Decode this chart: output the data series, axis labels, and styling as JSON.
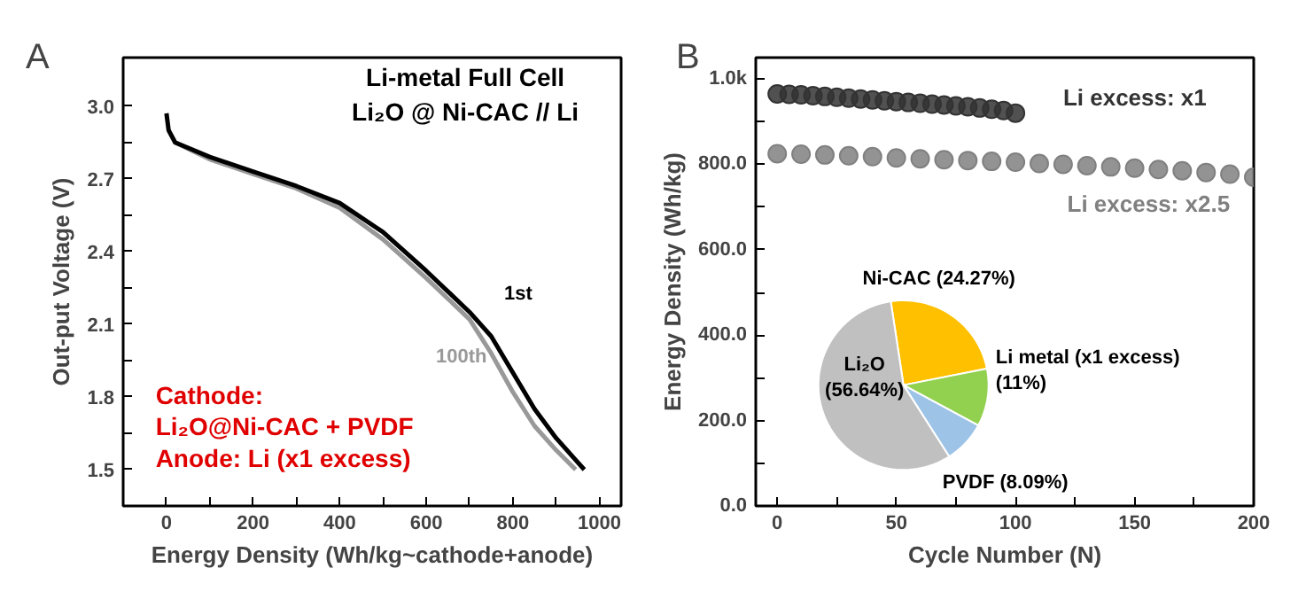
{
  "chart_data": [
    {
      "type": "line",
      "title": "A",
      "xlabel": "Energy Density (Wh/kg~cathode+anode)",
      "ylabel": "Out-put Voltage (V)",
      "xlim": [
        -100,
        1050
      ],
      "ylim": [
        1.35,
        3.2
      ],
      "xticks": [
        0,
        {
          "value": 100,
          "label": null
        },
        200,
        {
          "value": 300,
          "label": null
        },
        400,
        {
          "value": 500,
          "label": null
        },
        600,
        {
          "value": 700,
          "label": null
        },
        800,
        {
          "value": 900,
          "label": null
        },
        1000
      ],
      "yticks": [
        1.5,
        {
          "value": 1.65,
          "label": null
        },
        1.8,
        {
          "value": 1.95,
          "label": null
        },
        2.1,
        {
          "value": 2.25,
          "label": null
        },
        2.4,
        {
          "value": 2.55,
          "label": null
        },
        2.7,
        {
          "value": 2.85,
          "label": null
        },
        {
          "value": 3.0,
          "label": "3.0"
        }
      ],
      "grid": false,
      "marker": "none",
      "line_style": "solid",
      "annotations": [
        "Li-metal Full Cell",
        "Li₂O @ Ni-CAC // Li",
        "Cathode:",
        "Li₂O@Ni-CAC + PVDF",
        "Anode: Li (x1 excess)"
      ],
      "series": [
        {
          "name": "1st",
          "color": "#000000",
          "x": [
            0,
            5,
            20,
            100,
            200,
            300,
            400,
            500,
            600,
            700,
            750,
            800,
            850,
            900,
            940,
            965
          ],
          "values": [
            2.97,
            2.9,
            2.85,
            2.79,
            2.73,
            2.67,
            2.6,
            2.48,
            2.32,
            2.15,
            2.05,
            1.9,
            1.75,
            1.63,
            1.55,
            1.5
          ]
        },
        {
          "name": "100th",
          "color": "#999999",
          "x": [
            20,
            100,
            200,
            300,
            400,
            500,
            600,
            700,
            750,
            800,
            850,
            900,
            945
          ],
          "values": [
            2.85,
            2.78,
            2.72,
            2.66,
            2.58,
            2.45,
            2.29,
            2.12,
            1.98,
            1.82,
            1.68,
            1.58,
            1.5
          ]
        }
      ]
    },
    {
      "type": "scatter",
      "title": "B",
      "xlabel": "Cycle Number (N)",
      "ylabel": "Energy Density (Wh/kg)",
      "xlim": [
        -9,
        200
      ],
      "ylim": [
        0,
        1050
      ],
      "xticks": [
        0,
        {
          "value": 25,
          "label": null
        },
        50,
        {
          "value": 75,
          "label": null
        },
        100,
        {
          "value": 125,
          "label": null
        },
        150,
        {
          "value": 175,
          "label": null
        },
        200
      ],
      "yticks": [
        {
          "value": 0,
          "label": "0.0"
        },
        {
          "value": 100,
          "label": null
        },
        {
          "value": 200,
          "label": "200.0"
        },
        {
          "value": 300,
          "label": null
        },
        {
          "value": 400,
          "label": "400.0"
        },
        {
          "value": 500,
          "label": null
        },
        {
          "value": 600,
          "label": "600.0"
        },
        {
          "value": 700,
          "label": null
        },
        {
          "value": 800,
          "label": "800.0"
        },
        {
          "value": 900,
          "label": null
        },
        {
          "value": 1000,
          "label": "1.0k"
        }
      ],
      "grid": false,
      "marker": "circle",
      "series": [
        {
          "name": "Li excess: x1",
          "color": "#333333",
          "x": [
            0,
            5,
            10,
            15,
            20,
            25,
            30,
            35,
            40,
            45,
            50,
            55,
            60,
            65,
            70,
            75,
            80,
            85,
            90,
            95,
            100
          ],
          "values": [
            965,
            964,
            963,
            961,
            959,
            957,
            955,
            953,
            951,
            949,
            947,
            945,
            943,
            941,
            939,
            937,
            935,
            932,
            929,
            926,
            920
          ]
        },
        {
          "name": "Li excess: x2.5",
          "color": "#808080",
          "x": [
            0,
            10,
            20,
            30,
            40,
            50,
            60,
            70,
            80,
            90,
            100,
            110,
            120,
            130,
            140,
            150,
            160,
            170,
            180,
            190,
            200
          ],
          "values": [
            825,
            824,
            822,
            820,
            818,
            815,
            813,
            811,
            809,
            807,
            805,
            802,
            800,
            797,
            794,
            791,
            788,
            785,
            781,
            777,
            770
          ]
        }
      ]
    },
    {
      "type": "pie",
      "categories": [
        "Ni-CAC",
        "Li metal (x1 excess)",
        "PVDF",
        "Li₂O"
      ],
      "values": [
        24.27,
        11,
        8.09,
        56.64
      ],
      "colors": [
        "#ffc000",
        "#92d050",
        "#9dc3e6",
        "#c0c0c0"
      ],
      "value_labels": [
        "(24.27%)",
        "(11%)",
        "(8.09%)",
        "(56.64%)"
      ]
    }
  ]
}
